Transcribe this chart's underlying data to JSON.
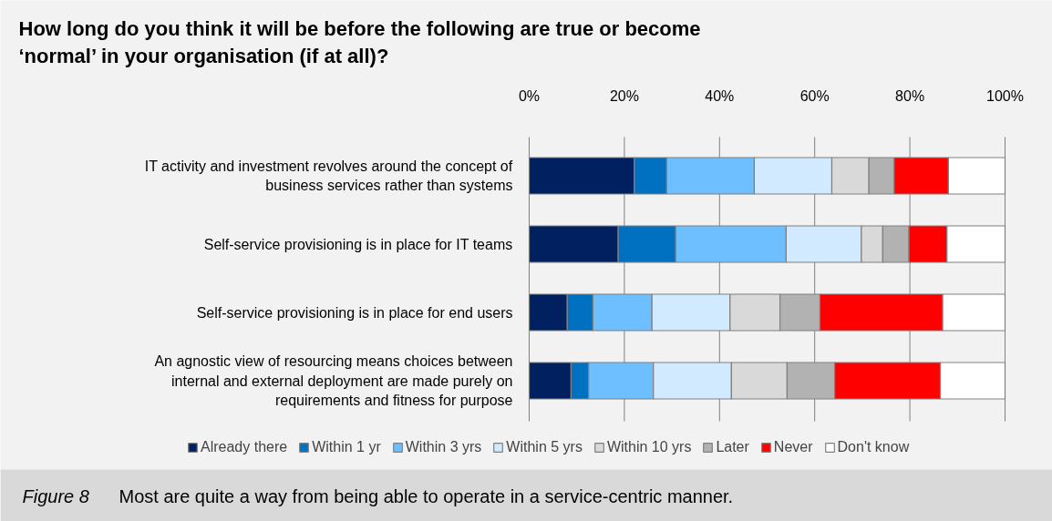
{
  "chart_data": {
    "type": "bar",
    "orientation": "horizontal",
    "stacked": true,
    "title": "How long do you think it will be before the following are true or become ‘normal’ in your organisation (if at all)?",
    "categories": [
      "IT activity and investment revolves around the concept of business services rather than systems",
      "Self-service provisioning is in place for IT teams",
      "Self-service provisioning is in place for end users",
      "An agnostic view of resourcing means choices between internal and external deployment are made purely on requirements and fitness for purpose"
    ],
    "series": [
      {
        "name": "Already there",
        "color": "#002060",
        "values": [
          22.1,
          18.7,
          8.0,
          8.8
        ]
      },
      {
        "name": "Within 1 yr",
        "color": "#0070c0",
        "values": [
          6.8,
          12.1,
          5.4,
          3.7
        ]
      },
      {
        "name": "Within 3 yrs",
        "color": "#6dbfff",
        "values": [
          18.4,
          23.2,
          12.4,
          13.6
        ]
      },
      {
        "name": "Within 5 yrs",
        "color": "#d1eaff",
        "values": [
          16.3,
          15.8,
          16.4,
          16.4
        ]
      },
      {
        "name": "Within 10 yrs",
        "color": "#d9d9d9",
        "values": [
          7.8,
          4.5,
          10.5,
          11.7
        ]
      },
      {
        "name": "Later",
        "color": "#b2b2b2",
        "values": [
          5.3,
          5.5,
          8.4,
          10.0
        ]
      },
      {
        "name": "Never",
        "color": "#ff0000",
        "values": [
          11.4,
          8.0,
          25.8,
          22.2
        ]
      },
      {
        "name": "Don't know",
        "color": "#ffffff",
        "values": [
          11.9,
          12.2,
          13.1,
          13.6
        ]
      }
    ],
    "xlim": [
      0,
      100
    ],
    "xticks": [
      {
        "value": 0,
        "label": "0%"
      },
      {
        "value": 20,
        "label": "20%"
      },
      {
        "value": 40,
        "label": "40%"
      },
      {
        "value": 60,
        "label": "60%"
      },
      {
        "value": 80,
        "label": "80%"
      },
      {
        "value": 100,
        "label": "100%"
      }
    ],
    "grid": "x",
    "legend": "bottom",
    "annotations": [
      "Figure 8",
      "Most are quite a way from being able to operate in a service-centric manner."
    ]
  }
}
